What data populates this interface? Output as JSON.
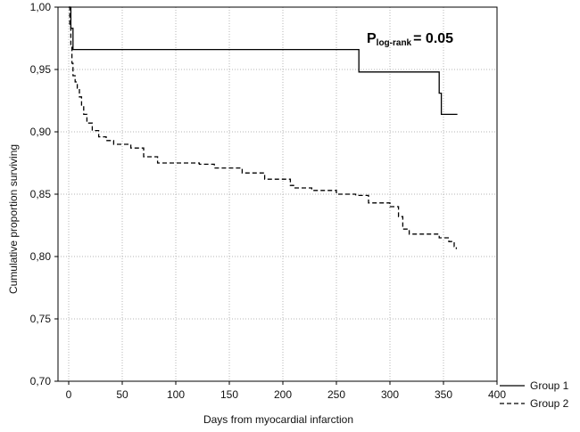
{
  "chart_data": {
    "type": "line",
    "title": "",
    "xlabel": "Days from myocardial infarction",
    "ylabel": "Cumulative proportion surviving",
    "xlim": [
      -10,
      400
    ],
    "ylim": [
      0.7,
      1.0
    ],
    "x_ticks": [
      0,
      50,
      100,
      150,
      200,
      250,
      300,
      350,
      400
    ],
    "x_tick_labels": [
      "0",
      "50",
      "100",
      "150",
      "200",
      "250",
      "300",
      "350",
      "400"
    ],
    "y_ticks": [
      0.7,
      0.75,
      0.8,
      0.85,
      0.9,
      0.95,
      1.0
    ],
    "y_tick_labels": [
      "0,70",
      "0,75",
      "0,80",
      "0,85",
      "0,90",
      "0,95",
      "1,00"
    ],
    "grid": true,
    "legend_position": "bottom-right-outside",
    "annotation": {
      "main": "P",
      "subscript": "log-rank",
      "suffix": "= 0.05"
    },
    "series": [
      {
        "name": "Group 1",
        "style": "solid",
        "color": "#000000",
        "step": true,
        "points": [
          [
            0,
            1.0
          ],
          [
            2,
            0.983
          ],
          [
            4,
            0.966
          ],
          [
            271,
            0.948
          ],
          [
            346,
            0.931
          ],
          [
            348,
            0.914
          ],
          [
            363,
            0.914
          ]
        ]
      },
      {
        "name": "Group 2",
        "style": "dashed",
        "color": "#000000",
        "step": true,
        "points": [
          [
            0,
            1.0
          ],
          [
            1,
            0.985
          ],
          [
            2,
            0.97
          ],
          [
            3,
            0.955
          ],
          [
            4,
            0.945
          ],
          [
            6,
            0.94
          ],
          [
            8,
            0.935
          ],
          [
            10,
            0.928
          ],
          [
            12,
            0.921
          ],
          [
            14,
            0.914
          ],
          [
            17,
            0.907
          ],
          [
            22,
            0.901
          ],
          [
            28,
            0.896
          ],
          [
            35,
            0.893
          ],
          [
            42,
            0.89
          ],
          [
            58,
            0.887
          ],
          [
            70,
            0.88
          ],
          [
            83,
            0.875
          ],
          [
            110,
            0.875
          ],
          [
            122,
            0.874
          ],
          [
            136,
            0.871
          ],
          [
            162,
            0.867
          ],
          [
            183,
            0.862
          ],
          [
            207,
            0.857
          ],
          [
            210,
            0.855
          ],
          [
            227,
            0.853
          ],
          [
            250,
            0.85
          ],
          [
            268,
            0.849
          ],
          [
            280,
            0.843
          ],
          [
            300,
            0.84
          ],
          [
            308,
            0.832
          ],
          [
            312,
            0.822
          ],
          [
            318,
            0.818
          ],
          [
            339,
            0.818
          ],
          [
            346,
            0.815
          ],
          [
            355,
            0.812
          ],
          [
            360,
            0.808
          ],
          [
            362,
            0.806
          ]
        ]
      }
    ]
  }
}
